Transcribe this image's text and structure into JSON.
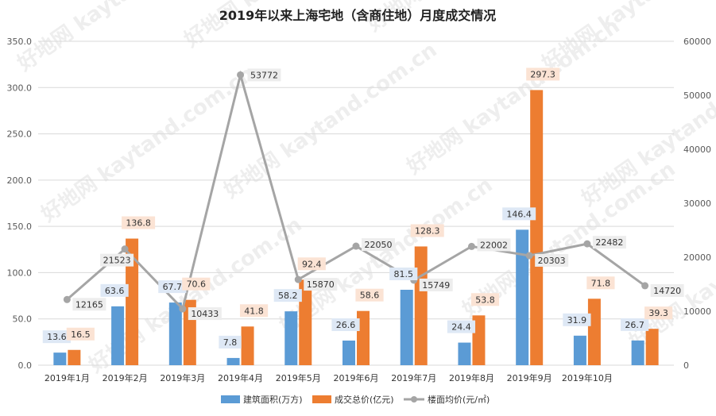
{
  "chart_data": {
    "type": "bar",
    "title": "2019年以来上海宅地（含商住地）月度成交情况",
    "categories": [
      "2019年1月",
      "2019年2月",
      "2019年3月",
      "2019年4月",
      "2019年5月",
      "2019年6月",
      "2019年7月",
      "2019年8月",
      "2019年9月",
      "2019年10月",
      ""
    ],
    "y_left": {
      "ylim": [
        0,
        350
      ],
      "ticks": [
        "0.0",
        "50.0",
        "100.0",
        "150.0",
        "200.0",
        "250.0",
        "300.0",
        "350.0"
      ],
      "tick_values": [
        0,
        50,
        100,
        150,
        200,
        250,
        300,
        350
      ]
    },
    "y_right": {
      "ylim": [
        0,
        60000
      ],
      "ticks": [
        "0",
        "10000",
        "20000",
        "30000",
        "40000",
        "50000",
        "60000"
      ],
      "tick_values": [
        0,
        10000,
        20000,
        30000,
        40000,
        50000,
        60000
      ]
    },
    "series": [
      {
        "name": "建筑面积(万方)",
        "type": "bar",
        "axis": "left",
        "color": "#5b9bd5",
        "values": [
          13.6,
          63.6,
          67.7,
          7.8,
          58.2,
          26.6,
          81.5,
          24.4,
          146.4,
          31.9,
          26.7
        ],
        "labels": [
          "13.6",
          "63.6",
          "67.7",
          "7.8",
          "58.2",
          "26.6",
          "81.5",
          "24.4",
          "146.4",
          "31.9",
          "26.7"
        ]
      },
      {
        "name": "成交总价(亿元)",
        "type": "bar",
        "axis": "left",
        "color": "#ed7d31",
        "values": [
          16.5,
          136.8,
          70.6,
          41.8,
          92.4,
          58.6,
          128.3,
          53.8,
          297.3,
          71.8,
          39.3
        ],
        "labels": [
          "16.5",
          "136.8",
          "70.6",
          "41.8",
          "92.4",
          "58.6",
          "128.3",
          "53.8",
          "297.3",
          "71.8",
          "39.3"
        ]
      },
      {
        "name": "楼面均价(元/㎡)",
        "type": "line",
        "axis": "right",
        "color": "#a5a5a5",
        "values": [
          12165,
          21523,
          10433,
          53772,
          15870,
          22050,
          15749,
          22002,
          20303,
          22482,
          14720
        ],
        "labels": [
          "12165",
          "21523",
          "10433",
          "53772",
          "15870",
          "22050",
          "15749",
          "22002",
          "20303",
          "22482",
          "14720"
        ]
      }
    ],
    "grid": true,
    "legend": "bottom",
    "watermark": "好地网 kaytand.com.cn"
  }
}
